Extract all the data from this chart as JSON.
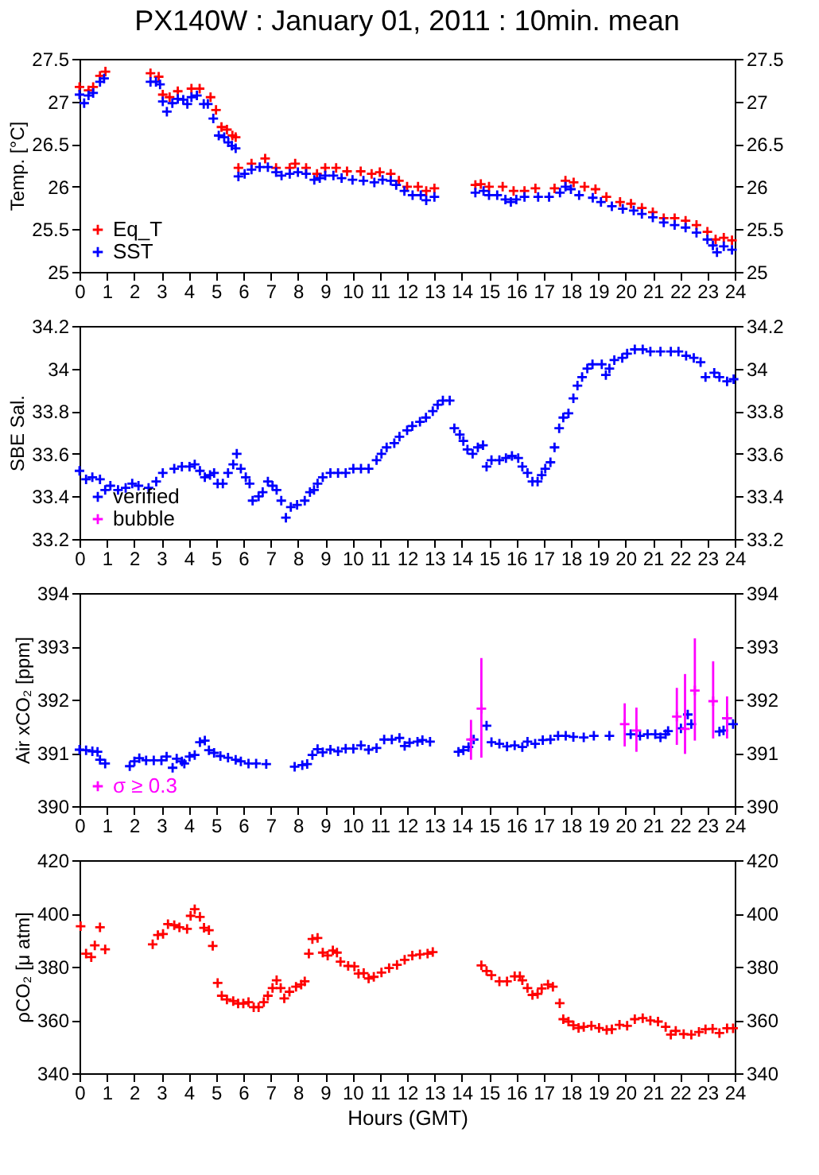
{
  "chart_data": [
    {
      "type": "scatter",
      "title": "PX140W : January 01, 2011 : 10min. mean",
      "ylabel": "Temp. [°C]",
      "marker": "cross",
      "legend": "bottom left",
      "xlim": [
        0,
        24
      ],
      "xticks": [
        0,
        1,
        2,
        3,
        4,
        5,
        6,
        7,
        8,
        9,
        10,
        11,
        12,
        13,
        14,
        15,
        16,
        17,
        18,
        19,
        20,
        21,
        22,
        23,
        24
      ],
      "ylim": [
        25,
        27.5
      ],
      "yticks": [
        25,
        25.5,
        26,
        26.5,
        27,
        27.5
      ],
      "y2lim": [
        25,
        27.5
      ],
      "y2ticks": [
        25,
        25.5,
        26,
        26.5,
        27,
        27.5
      ],
      "series": [
        {
          "name": "Eq_T",
          "color": "#ff0000",
          "x": [
            0,
            0.33,
            0.5,
            0.75,
            0.95,
            2.6,
            2.9,
            3.05,
            3.3,
            3.6,
            4.1,
            4.4,
            4.8,
            5.0,
            5.2,
            5.4,
            5.6,
            5.72,
            5.82,
            6.3,
            6.8,
            7.2,
            7.7,
            7.9,
            8.3,
            8.7,
            9.0,
            9.4,
            9.8,
            10.3,
            10.7,
            11.0,
            11.4,
            11.7,
            12.0,
            12.4,
            12.7,
            13.0,
            14.5,
            14.7,
            15.0,
            15.5,
            15.9,
            16.3,
            16.7,
            17.4,
            17.8,
            18.1,
            18.5,
            18.9,
            19.3,
            19.8,
            20.2,
            20.6,
            21.0,
            21.4,
            21.8,
            22.2,
            22.6,
            23.0,
            23.3,
            23.6,
            23.9
          ],
          "values": [
            27.17,
            27.13,
            27.17,
            27.3,
            27.35,
            27.33,
            27.29,
            27.08,
            27.05,
            27.12,
            27.15,
            27.15,
            27.05,
            26.9,
            26.7,
            26.67,
            26.6,
            26.58,
            26.22,
            26.27,
            26.33,
            26.22,
            26.22,
            26.27,
            26.22,
            26.15,
            26.22,
            26.22,
            26.18,
            26.18,
            26.15,
            26.17,
            26.15,
            26.07,
            26.0,
            26.0,
            25.95,
            25.98,
            26.02,
            26.03,
            26.0,
            26.0,
            25.95,
            25.95,
            25.98,
            25.98,
            26.07,
            26.05,
            26.0,
            25.97,
            25.88,
            25.82,
            25.8,
            25.75,
            25.7,
            25.63,
            25.63,
            25.6,
            25.55,
            25.47,
            25.38,
            25.4,
            25.37
          ]
        },
        {
          "name": "SST",
          "color": "#0000ff",
          "x": [
            0,
            0.17,
            0.33,
            0.5,
            0.75,
            0.9,
            2.6,
            2.8,
            2.95,
            3.05,
            3.2,
            3.4,
            3.6,
            3.8,
            3.95,
            4.1,
            4.3,
            4.55,
            4.7,
            4.9,
            5.1,
            5.3,
            5.45,
            5.58,
            5.72,
            5.82,
            6.05,
            6.3,
            6.6,
            6.9,
            7.2,
            7.4,
            7.7,
            8.0,
            8.3,
            8.6,
            8.8,
            9.0,
            9.3,
            9.6,
            10.0,
            10.4,
            10.8,
            11.1,
            11.4,
            11.6,
            11.9,
            12.2,
            12.5,
            12.7,
            13.0,
            14.5,
            14.8,
            15.0,
            15.3,
            15.6,
            15.8,
            16.0,
            16.3,
            16.8,
            17.2,
            17.6,
            17.8,
            18.0,
            18.3,
            18.8,
            19.1,
            19.5,
            19.9,
            20.3,
            20.6,
            21.0,
            21.4,
            21.8,
            22.2,
            22.6,
            23.0,
            23.2,
            23.35,
            23.6,
            23.9
          ],
          "values": [
            27.08,
            26.98,
            27.07,
            27.1,
            27.23,
            27.27,
            27.23,
            27.23,
            27.2,
            27.0,
            26.88,
            26.98,
            27.03,
            27.02,
            26.97,
            27.05,
            27.07,
            26.97,
            26.97,
            26.8,
            26.6,
            26.58,
            26.52,
            26.48,
            26.45,
            26.12,
            26.15,
            26.2,
            26.23,
            26.23,
            26.17,
            26.13,
            26.15,
            26.17,
            26.15,
            26.08,
            26.1,
            26.13,
            26.13,
            26.1,
            26.08,
            26.07,
            26.05,
            26.08,
            26.07,
            26.02,
            25.95,
            25.9,
            25.9,
            25.84,
            25.88,
            25.93,
            25.95,
            25.9,
            25.9,
            25.85,
            25.82,
            25.85,
            25.88,
            25.88,
            25.88,
            25.93,
            26.0,
            25.97,
            25.9,
            25.87,
            25.82,
            25.77,
            25.74,
            25.72,
            25.68,
            25.64,
            25.58,
            25.55,
            25.52,
            25.46,
            25.38,
            25.31,
            25.23,
            25.3,
            25.26
          ]
        }
      ]
    },
    {
      "type": "scatter",
      "ylabel": "SBE Sal.",
      "marker": "cross",
      "legend": "bottom left",
      "xlim": [
        0,
        24
      ],
      "xticks": [
        0,
        1,
        2,
        3,
        4,
        5,
        6,
        7,
        8,
        9,
        10,
        11,
        12,
        13,
        14,
        15,
        16,
        17,
        18,
        19,
        20,
        21,
        22,
        23,
        24
      ],
      "ylim": [
        33.2,
        34.2
      ],
      "yticks": [
        33.2,
        33.4,
        33.6,
        33.8,
        34,
        34.2
      ],
      "y2lim": [
        33.2,
        34.2
      ],
      "y2ticks": [
        33.2,
        33.4,
        33.6,
        33.8,
        34,
        34.2
      ],
      "series": [
        {
          "name": "verified",
          "color": "#0000ff",
          "x": [
            0,
            0.24,
            0.47,
            0.75,
            0.94,
            1.13,
            1.41,
            1.69,
            1.93,
            2.16,
            2.53,
            2.81,
            3.05,
            3.47,
            3.75,
            4.03,
            4.22,
            4.41,
            4.59,
            4.78,
            4.93,
            5.06,
            5.25,
            5.44,
            5.63,
            5.76,
            5.91,
            6.09,
            6.23,
            6.34,
            6.56,
            6.71,
            6.9,
            7.07,
            7.22,
            7.39,
            7.56,
            7.74,
            7.97,
            8.25,
            8.44,
            8.59,
            8.72,
            8.91,
            9.19,
            9.47,
            9.75,
            10.03,
            10.31,
            10.59,
            10.88,
            11.06,
            11.25,
            11.53,
            11.72,
            12.0,
            12.19,
            12.47,
            12.69,
            12.94,
            13.12,
            13.31,
            13.56,
            13.73,
            13.93,
            14.06,
            14.21,
            14.4,
            14.59,
            14.78,
            14.91,
            15.09,
            15.38,
            15.62,
            15.84,
            16.07,
            16.22,
            16.41,
            16.59,
            16.78,
            16.93,
            17.06,
            17.25,
            17.4,
            17.57,
            17.72,
            17.91,
            18.09,
            18.24,
            18.41,
            18.6,
            18.79,
            19.13,
            19.28,
            19.41,
            19.59,
            19.88,
            20.06,
            20.34,
            20.63,
            20.91,
            21.28,
            21.66,
            21.94,
            22.22,
            22.5,
            22.75,
            22.93,
            23.25,
            23.44,
            23.72,
            23.96
          ],
          "values": [
            33.52,
            33.48,
            33.49,
            33.48,
            33.43,
            33.45,
            33.43,
            33.44,
            33.46,
            33.45,
            33.44,
            33.47,
            33.51,
            33.53,
            33.54,
            33.54,
            33.55,
            33.52,
            33.49,
            33.5,
            33.51,
            33.46,
            33.46,
            33.51,
            33.55,
            33.6,
            33.53,
            33.49,
            33.46,
            33.38,
            33.4,
            33.42,
            33.47,
            33.45,
            33.43,
            33.38,
            33.3,
            33.35,
            33.36,
            33.38,
            33.42,
            33.43,
            33.46,
            33.49,
            33.51,
            33.51,
            33.51,
            33.53,
            33.53,
            33.53,
            33.57,
            33.6,
            33.63,
            33.65,
            33.68,
            33.71,
            33.73,
            33.75,
            33.77,
            33.8,
            33.83,
            33.85,
            33.85,
            33.72,
            33.69,
            33.66,
            33.62,
            33.6,
            33.63,
            33.64,
            33.54,
            33.57,
            33.57,
            33.58,
            33.59,
            33.58,
            33.54,
            33.51,
            33.47,
            33.47,
            33.5,
            33.53,
            33.56,
            33.63,
            33.72,
            33.77,
            33.79,
            33.86,
            33.92,
            33.96,
            34.0,
            34.02,
            34.02,
            33.97,
            34.0,
            34.04,
            34.05,
            34.07,
            34.09,
            34.09,
            34.08,
            34.08,
            34.08,
            34.08,
            34.06,
            34.05,
            34.03,
            33.96,
            33.98,
            33.96,
            33.94,
            33.95
          ]
        },
        {
          "name": "bubble",
          "color": "#ff00ff"
        }
      ]
    },
    {
      "type": "scatter",
      "ylabel": "Air xCO₂ [ppm]",
      "marker": "cross",
      "legend": "bottom left",
      "xlim": [
        0,
        24
      ],
      "xticks": [
        0,
        1,
        2,
        3,
        4,
        5,
        6,
        7,
        8,
        9,
        10,
        11,
        12,
        13,
        14,
        15,
        16,
        17,
        18,
        19,
        20,
        21,
        22,
        23,
        24
      ],
      "ylim": [
        390,
        394
      ],
      "yticks": [
        390,
        391,
        392,
        393,
        394
      ],
      "y2lim": [
        390,
        394
      ],
      "y2ticks": [
        390,
        391,
        392,
        393,
        394
      ],
      "series": [
        {
          "color": "#0000ff",
          "x": [
            0,
            0.24,
            0.47,
            0.66,
            0.75,
            0.94,
            1.84,
            2.01,
            2.19,
            2.44,
            2.72,
            3.0,
            3.19,
            3.41,
            3.56,
            3.75,
            3.84,
            4.03,
            4.22,
            4.41,
            4.59,
            4.74,
            4.93,
            5.16,
            5.44,
            5.72,
            5.91,
            6.19,
            6.47,
            6.84,
            7.88,
            8.16,
            8.34,
            8.53,
            8.72,
            8.91,
            9.19,
            9.47,
            9.75,
            10.03,
            10.31,
            10.59,
            10.88,
            11.16,
            11.44,
            11.72,
            11.91,
            12.09,
            12.38,
            12.56,
            12.84,
            13.88,
            14.06,
            14.25,
            14.44,
            14.91,
            15.09,
            15.38,
            15.66,
            15.94,
            16.22,
            16.41,
            16.69,
            16.97,
            17.25,
            17.53,
            17.81,
            18.09,
            18.47,
            18.84,
            19.41,
            20.19,
            20.53,
            20.81,
            21.09,
            21.28,
            21.47,
            21.56,
            22.03,
            22.28,
            22.41,
            23.44,
            23.59,
            23.72,
            23.94
          ],
          "values": [
            391.06,
            391.05,
            391.03,
            391.02,
            390.87,
            390.8,
            390.75,
            390.84,
            390.9,
            390.86,
            390.86,
            390.86,
            390.93,
            390.72,
            390.89,
            390.84,
            390.8,
            390.93,
            390.96,
            391.2,
            391.23,
            391.05,
            391.0,
            390.94,
            390.91,
            390.87,
            390.84,
            390.8,
            390.8,
            390.79,
            390.74,
            390.77,
            390.79,
            390.96,
            391.07,
            391.01,
            391.06,
            391.03,
            391.08,
            391.08,
            391.14,
            391.06,
            391.09,
            391.25,
            391.25,
            391.28,
            391.13,
            391.19,
            391.21,
            391.24,
            391.21,
            391.02,
            391.05,
            391.11,
            391.25,
            391.51,
            391.2,
            391.17,
            391.12,
            391.14,
            391.11,
            391.21,
            391.17,
            391.24,
            391.25,
            391.32,
            391.32,
            391.3,
            391.29,
            391.32,
            391.32,
            391.35,
            391.32,
            391.35,
            391.35,
            391.29,
            391.35,
            391.41,
            391.46,
            391.72,
            391.54,
            391.4,
            391.42,
            391.65,
            391.54
          ]
        },
        {
          "name": "σ ≥ 0.3",
          "color": "#ff00ff",
          "x": [
            14.34,
            14.72,
            19.97,
            20.4,
            21.88,
            22.18,
            22.54,
            23.21,
            23.72
          ],
          "values": [
            391.25,
            391.83,
            391.54,
            391.42,
            391.68,
            391.45,
            392.17,
            391.97,
            391.65
          ],
          "errors": [
            [
              390.87,
              391.62
            ],
            [
              390.91,
              392.78
            ],
            [
              391.12,
              391.93
            ],
            [
              391.02,
              391.85
            ],
            [
              391.15,
              392.22
            ],
            [
              390.98,
              392.48
            ],
            [
              391.23,
              393.15
            ],
            [
              391.27,
              392.72
            ],
            [
              391.27,
              392.06
            ]
          ]
        }
      ]
    },
    {
      "type": "scatter",
      "ylabel": "ρCO₂ [μ atm]",
      "xlabel": "Hours (GMT)",
      "marker": "cross",
      "xlim": [
        0,
        24
      ],
      "xticks": [
        0,
        1,
        2,
        3,
        4,
        5,
        6,
        7,
        8,
        9,
        10,
        11,
        12,
        13,
        14,
        15,
        16,
        17,
        18,
        19,
        20,
        21,
        22,
        23,
        24
      ],
      "ylim": [
        340,
        420
      ],
      "yticks": [
        340,
        360,
        380,
        400,
        420
      ],
      "y2lim": [
        340,
        420
      ],
      "y2ticks": [
        340,
        360,
        380,
        400,
        420
      ],
      "series": [
        {
          "color": "#ff0000",
          "x": [
            0.04,
            0.24,
            0.43,
            0.56,
            0.75,
            0.94,
            2.68,
            2.87,
            3.06,
            3.24,
            3.47,
            3.66,
            3.94,
            4.07,
            4.22,
            4.41,
            4.56,
            4.74,
            4.88,
            5.06,
            5.21,
            5.4,
            5.63,
            5.81,
            6.0,
            6.19,
            6.38,
            6.56,
            6.75,
            6.9,
            7.07,
            7.22,
            7.37,
            7.5,
            7.69,
            7.93,
            8.12,
            8.25,
            8.4,
            8.53,
            8.72,
            8.91,
            9.09,
            9.28,
            9.43,
            9.56,
            9.84,
            10.07,
            10.22,
            10.41,
            10.59,
            10.78,
            11.06,
            11.34,
            11.63,
            11.91,
            12.19,
            12.47,
            12.75,
            12.94,
            14.72,
            14.91,
            15.09,
            15.38,
            15.66,
            15.94,
            16.13,
            16.22,
            16.41,
            16.59,
            16.78,
            16.93,
            17.16,
            17.34,
            17.59,
            17.72,
            17.91,
            18.09,
            18.28,
            18.47,
            18.75,
            19.03,
            19.31,
            19.5,
            19.78,
            20.06,
            20.34,
            20.63,
            20.91,
            21.19,
            21.47,
            21.66,
            21.84,
            22.13,
            22.41,
            22.69,
            22.93,
            23.19,
            23.44,
            23.72,
            23.94
          ],
          "values": [
            395.2,
            384.9,
            383.6,
            388,
            394.8,
            386.5,
            388.4,
            391.9,
            392.3,
            396,
            395.6,
            394.8,
            394.2,
            399.1,
            401.6,
            398.7,
            394.6,
            393.7,
            387.8,
            373.9,
            369.1,
            367.7,
            367.1,
            366.2,
            366.2,
            366.7,
            364.8,
            364.8,
            366.7,
            369.1,
            372,
            374.9,
            372,
            368.1,
            370.6,
            372.5,
            373.3,
            374.5,
            384.9,
            390.4,
            390.8,
            385.3,
            384.2,
            386.1,
            385.3,
            381.9,
            380.3,
            380.1,
            377.4,
            377.6,
            375.6,
            376.2,
            377.8,
            379.5,
            380.7,
            382.6,
            384.2,
            384.6,
            384.9,
            385.5,
            380.5,
            378.4,
            376.8,
            374.5,
            374.5,
            376.4,
            376.4,
            374.9,
            372,
            369.4,
            369.8,
            371.8,
            373.3,
            372.5,
            366.3,
            360.3,
            359.4,
            358,
            357,
            357.4,
            357.8,
            357,
            356.3,
            356.5,
            358.2,
            357.8,
            360.3,
            360.7,
            359.8,
            359.4,
            357.4,
            354.5,
            355.9,
            354.7,
            354.5,
            355.5,
            356.5,
            356.7,
            355.1,
            356.9,
            356.9
          ]
        }
      ]
    }
  ]
}
